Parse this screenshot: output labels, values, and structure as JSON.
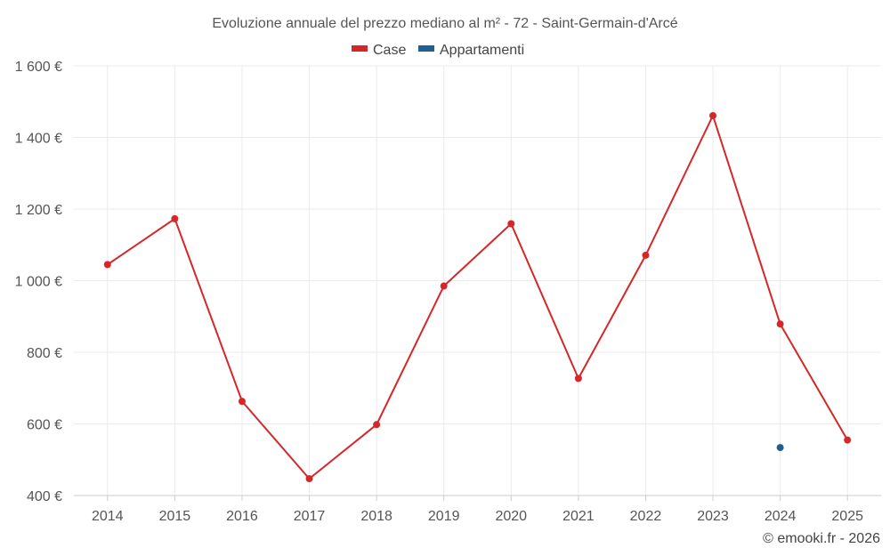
{
  "chart_data": {
    "type": "line",
    "title": "Evoluzione annuale del prezzo mediano al m² - 72 - Saint-Germain-d'Arcé",
    "categories": [
      "2014",
      "2015",
      "2016",
      "2017",
      "2018",
      "2019",
      "2020",
      "2021",
      "2022",
      "2023",
      "2024",
      "2025"
    ],
    "series": [
      {
        "name": "Case",
        "color": "#d62728",
        "values": [
          1045,
          1173,
          663,
          447,
          598,
          985,
          1159,
          727,
          1071,
          1461,
          879,
          555
        ]
      },
      {
        "name": "Appartamenti",
        "color": "#1f5f94",
        "values": [
          null,
          null,
          null,
          null,
          null,
          null,
          null,
          null,
          null,
          null,
          534,
          null
        ]
      }
    ],
    "ylim": [
      400,
      1600
    ],
    "yticks": [
      400,
      600,
      800,
      1000,
      1200,
      1400,
      1600
    ],
    "ytick_labels": [
      "400 €",
      "600 €",
      "800 €",
      "1 000 €",
      "1 200 €",
      "1 400 €",
      "1 600 €"
    ],
    "xlabel": "",
    "ylabel": "",
    "grid": true,
    "legend_position": "top-center"
  },
  "credit": "© emooki.fr - 2026"
}
